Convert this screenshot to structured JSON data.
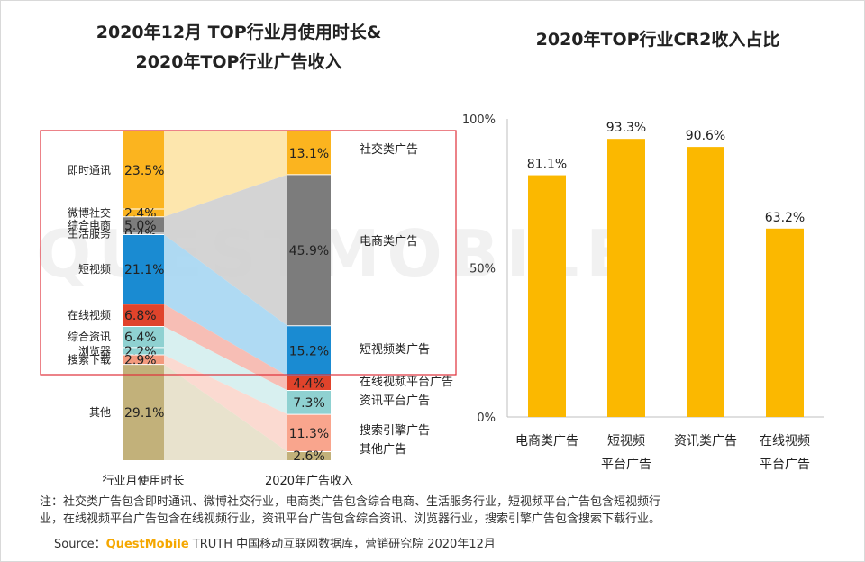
{
  "titles": {
    "left_line1": "2020年12月 TOP行业月使用时长&",
    "left_line2": "2020年TOP行业广告收入",
    "right": "2020年TOP行业CR2收入占比"
  },
  "watermark": "QUESTMOBILE",
  "notes": {
    "line1": "注：社交类广告包含即时通讯、微博社交行业，电商类广告包含综合电商、生活服务行业，短视频平台广告包含短视频行",
    "line2": "业，在线视频平台广告包含在线视频行业，资讯平台广告包含综合资讯、浏览器行业，搜索引擎广告包含搜索下载行业。"
  },
  "source": {
    "prefix": "Source：",
    "brand": "QuestMobile",
    "rest": " TRUTH 中国移动互联网数据库，营销研究院 2020年12月"
  },
  "colors": {
    "highlight_box": "#e0303a",
    "accent": "#f5a700"
  },
  "chart_data": [
    {
      "type": "sankey",
      "left_column_label": "行业月使用时长",
      "right_column_label": "2020年广告收入",
      "left": [
        {
          "name": "即时通讯",
          "value": 23.5,
          "label": "23.5%",
          "color": "#fbb41f"
        },
        {
          "name": "微博社交",
          "value": 2.4,
          "label": "2.4%",
          "color": "#fbb41f"
        },
        {
          "name": "综合电商",
          "value": 5.0,
          "label": "5.0%",
          "color": "#7c7c7c"
        },
        {
          "name": "生活服务",
          "value": 0.4,
          "label": "0.4%",
          "color": "#7c7c7c"
        },
        {
          "name": "短视频",
          "value": 21.1,
          "label": "21.1%",
          "color": "#1a8bd2"
        },
        {
          "name": "在线视频",
          "value": 6.8,
          "label": "6.8%",
          "color": "#e0432b"
        },
        {
          "name": "综合资讯",
          "value": 6.4,
          "label": "6.4%",
          "color": "#8fd1d1"
        },
        {
          "name": "浏览器",
          "value": 2.2,
          "label": "2.2%",
          "color": "#8fd1d1"
        },
        {
          "name": "搜索下载",
          "value": 2.9,
          "label": "2.9%",
          "color": "#f39a7e"
        },
        {
          "name": "其他",
          "value": 29.1,
          "label": "29.1%",
          "color": "#c2b17a"
        }
      ],
      "right": [
        {
          "name": "社交类广告",
          "value": 13.1,
          "label": "13.1%",
          "color": "#fbb41f"
        },
        {
          "name": "电商类广告",
          "value": 45.9,
          "label": "45.9%",
          "color": "#7c7c7c"
        },
        {
          "name": "短视频类广告",
          "value": 15.2,
          "label": "15.2%",
          "color": "#1a8bd2"
        },
        {
          "name": "在线视频平台广告",
          "value": 4.4,
          "label": "4.4%",
          "color": "#e0432b"
        },
        {
          "name": "资讯平台广告",
          "value": 7.3,
          "label": "7.3%",
          "color": "#8fd1d1"
        },
        {
          "name": "搜索引擎广告",
          "value": 11.3,
          "label": "11.3%",
          "color": "#f9a58d"
        },
        {
          "name": "其他广告",
          "value": 2.6,
          "label": "2.6%",
          "color": "#c2b17a"
        }
      ],
      "flows": [
        {
          "from": [
            0,
            1
          ],
          "to": 0,
          "color": "#fde3a4"
        },
        {
          "from": [
            2,
            3
          ],
          "to": 1,
          "color": "#cfcfcf"
        },
        {
          "from": [
            4,
            4
          ],
          "to": 2,
          "color": "#a6d6f2"
        },
        {
          "from": [
            5,
            5
          ],
          "to": 3,
          "color": "#f6b7ad"
        },
        {
          "from": [
            6,
            7
          ],
          "to": 4,
          "color": "#d4eeee"
        },
        {
          "from": [
            8,
            8
          ],
          "to": 5,
          "color": "#fbd6cc"
        },
        {
          "from": [
            9,
            9
          ],
          "to": 6,
          "color": "#e6dfc8"
        }
      ]
    },
    {
      "type": "bar",
      "title": "2020年TOP行业CR2收入占比",
      "categories": [
        [
          "电商类广告"
        ],
        [
          "短视频",
          "平台广告"
        ],
        [
          "资讯类广告"
        ],
        [
          "在线视频",
          "平台广告"
        ]
      ],
      "values": [
        81.1,
        93.3,
        90.6,
        63.2
      ],
      "value_labels": [
        "81.1%",
        "93.3%",
        "90.6%",
        "63.2%"
      ],
      "ylim": [
        0,
        100
      ],
      "yticks": [
        "0%",
        "50%",
        "100%"
      ],
      "bar_color": "#fbb800"
    }
  ]
}
